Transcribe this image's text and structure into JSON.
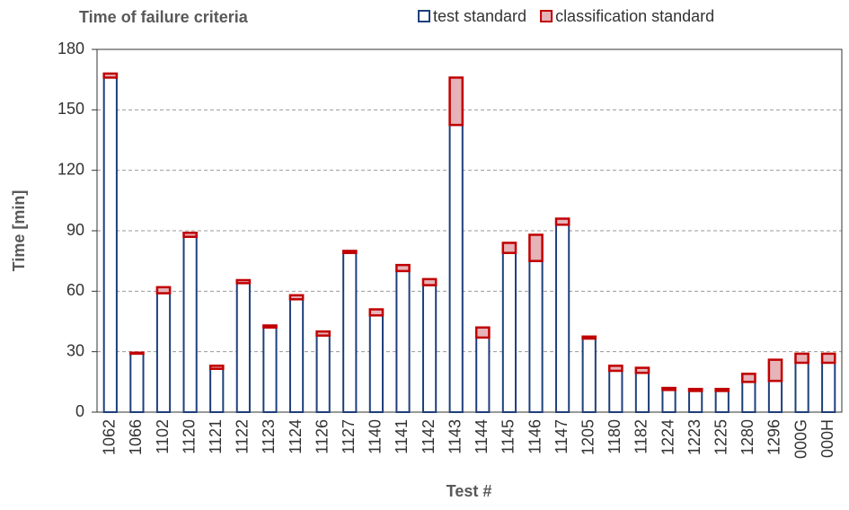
{
  "chart_data": {
    "type": "stacked_bar",
    "title": "Time of failure criteria",
    "x_label": "Test #",
    "y_label": "Time [min]",
    "categories": [
      "1062",
      "1066",
      "1102",
      "1120",
      "1121",
      "1122",
      "1123",
      "1124",
      "1126",
      "1127",
      "1140",
      "1141",
      "1142",
      "1143",
      "1144",
      "1145",
      "1146",
      "1147",
      "1205",
      "1180",
      "1182",
      "1224",
      "1223",
      "1225",
      "1280",
      "1296",
      "000G",
      "000H"
    ],
    "series": [
      {
        "name": "test standard",
        "color": "#ffffff",
        "stroke": "#1f3f7a",
        "values": [
          166,
          29,
          59,
          87,
          21.5,
          64,
          42,
          56,
          38,
          79,
          48,
          70,
          63,
          142.5,
          37,
          79,
          75,
          93,
          36.5,
          20.5,
          19.5,
          11,
          10.5,
          10.5,
          15,
          15.5,
          24.5,
          24.5
        ]
      },
      {
        "name": "classification standard",
        "color": "#e6b3b8",
        "stroke": "#c00000",
        "values": [
          2,
          0.5,
          3,
          2,
          1.5,
          1.5,
          1,
          2,
          2,
          1,
          3,
          3,
          3,
          23.5,
          5,
          5,
          13,
          3,
          1,
          2.5,
          2.5,
          1,
          1,
          1,
          4,
          10.5,
          4.5,
          4.5
        ]
      }
    ],
    "ylim": [
      0,
      180
    ],
    "yticks": [
      0,
      30,
      60,
      90,
      120,
      150,
      180
    ],
    "grid": true
  }
}
